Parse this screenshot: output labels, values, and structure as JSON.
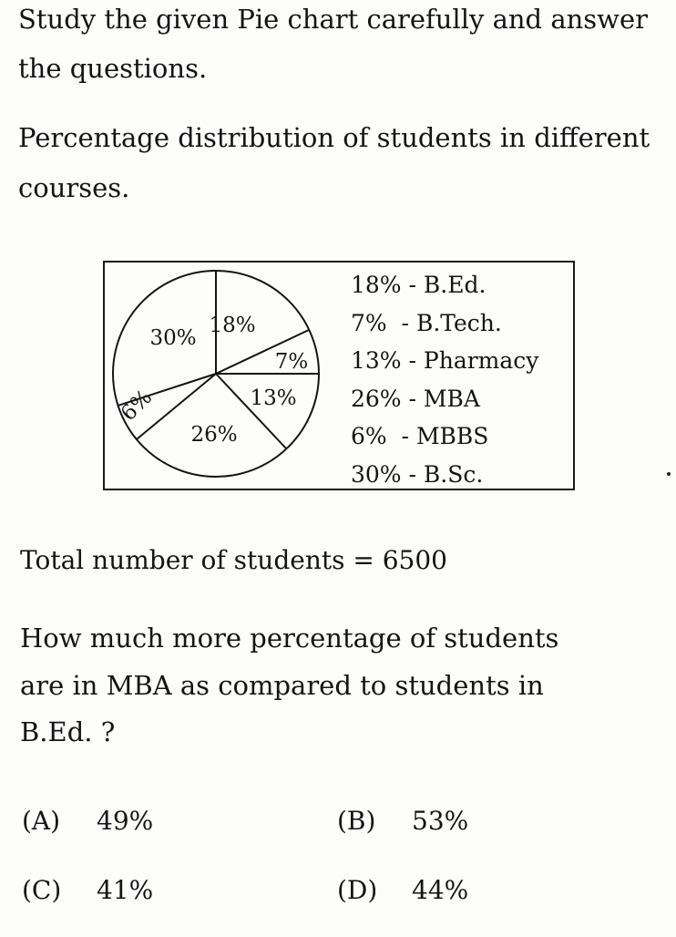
{
  "intro": {
    "line1": "Study the given Pie chart carefully and answer",
    "line2": "the questions."
  },
  "caption": {
    "line1": "Percentage distribution of students in different",
    "line2": "courses."
  },
  "chart_data": {
    "type": "pie",
    "slices": [
      {
        "label": "B.Ed.",
        "value": 18,
        "text": "18%"
      },
      {
        "label": "B.Tech.",
        "value": 7,
        "text": "7%"
      },
      {
        "label": "Pharmacy",
        "value": 13,
        "text": "13%"
      },
      {
        "label": "MBA",
        "value": 26,
        "text": "26%"
      },
      {
        "label": "MBBS",
        "value": 6,
        "text": "6%"
      },
      {
        "label": "B.Sc.",
        "value": 30,
        "text": "30%"
      }
    ],
    "legend": [
      "18% - B.Ed.",
      "7%  - B.Tech.",
      "13% - Pharmacy",
      "26% - MBA",
      "6%  - MBBS",
      "30% - B.Sc."
    ],
    "legend_position": "right"
  },
  "total": "Total number of students = 6500",
  "question": {
    "line1": "How much more percentage of students",
    "line2": "are in MBA as compared to students in",
    "line3": "B.Ed. ?"
  },
  "options": [
    {
      "key": "(A)",
      "value": "49%"
    },
    {
      "key": "(B)",
      "value": "53%"
    },
    {
      "key": "(C)",
      "value": "41%"
    },
    {
      "key": "(D)",
      "value": "44%"
    }
  ]
}
